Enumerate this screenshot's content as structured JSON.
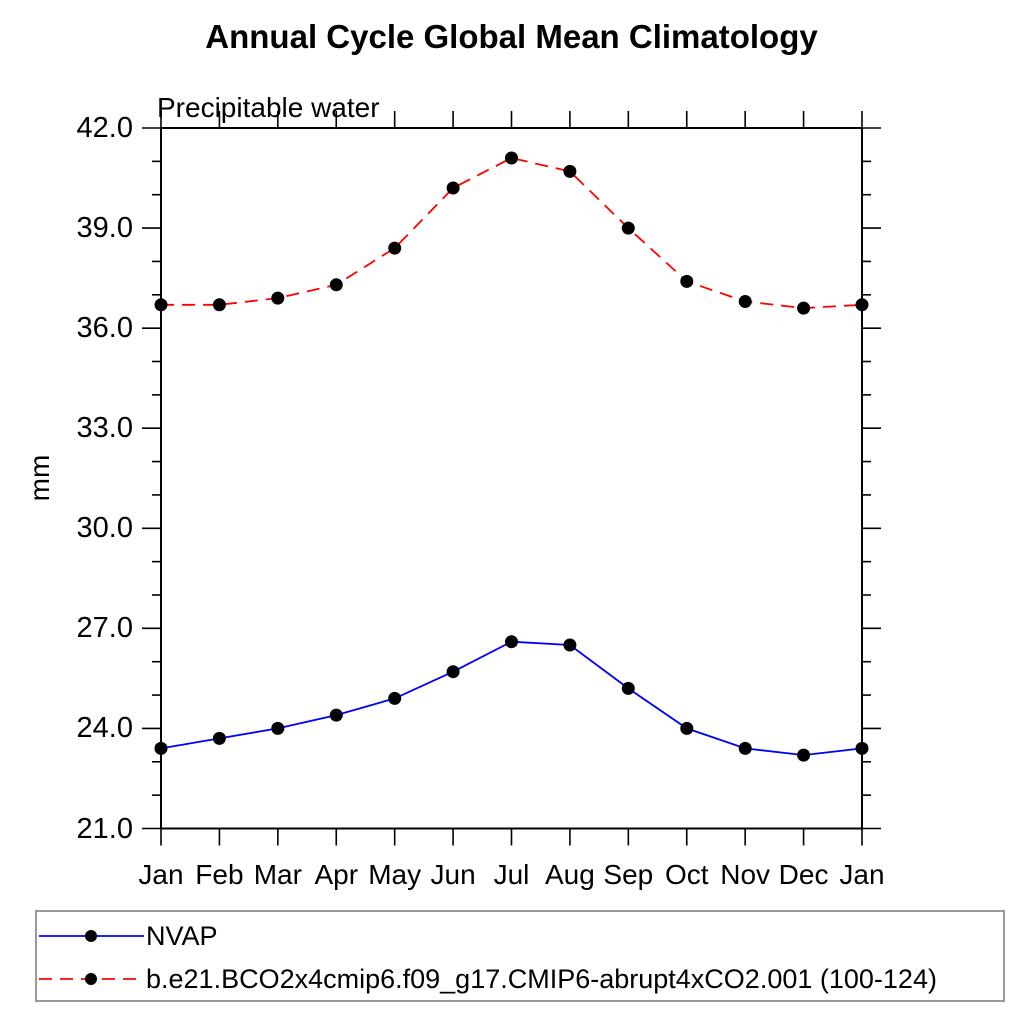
{
  "header": {
    "title": "Annual Cycle Global Mean Climatology",
    "subtitle": "Precipitable water"
  },
  "chart_data": {
    "type": "line",
    "title": "Annual Cycle Global Mean Climatology",
    "subtitle": "Precipitable water",
    "xlabel": "",
    "ylabel": "mm",
    "x_categories": [
      "Jan",
      "Feb",
      "Mar",
      "Apr",
      "May",
      "Jun",
      "Jul",
      "Aug",
      "Sep",
      "Oct",
      "Nov",
      "Dec",
      "Jan"
    ],
    "ylim": [
      21.0,
      42.0
    ],
    "y_major_ticks": [
      21,
      24,
      27,
      30,
      33,
      36,
      39,
      42
    ],
    "y_major_tick_labels": [
      "21.0",
      "24.0",
      "27.0",
      "30.0",
      "33.0",
      "36.0",
      "39.0",
      "42.0"
    ],
    "y_minor_step": 1.0,
    "grid": false,
    "legend_position": "bottom-left-box",
    "axis_color": "#000000",
    "series": [
      {
        "name": "NVAP",
        "color": "#0000ff",
        "line_style": "solid",
        "marker": "filled-circle",
        "marker_color": "#000000",
        "values": [
          23.4,
          23.7,
          24.0,
          24.4,
          24.9,
          25.7,
          26.6,
          26.5,
          25.2,
          24.0,
          23.4,
          23.2,
          23.4
        ]
      },
      {
        "name": "b.e21.BCO2x4cmip6.f09_g17.CMIP6-abrupt4xCO2.001 (100-124)",
        "color": "#ff0000",
        "line_style": "dashed",
        "marker": "filled-circle",
        "marker_color": "#000000",
        "values": [
          36.7,
          36.7,
          36.9,
          37.3,
          38.4,
          40.2,
          41.1,
          40.7,
          39.0,
          37.4,
          36.8,
          36.6,
          36.7
        ]
      }
    ]
  }
}
